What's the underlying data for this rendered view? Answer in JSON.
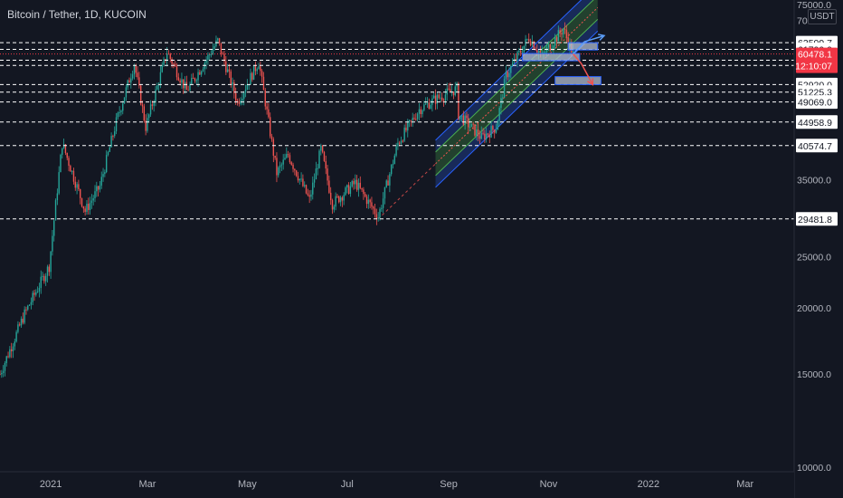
{
  "header": {
    "title": "Bitcoin / Tether, 1D, KUCOIN",
    "unit": "USDT"
  },
  "colors": {
    "background": "#131722",
    "up": "#26a69a",
    "down": "#ef5350",
    "grid_text": "#b2b5be",
    "price_badge": "#f23645"
  },
  "current_price": {
    "value": "60478.1",
    "countdown": "12:10:07"
  },
  "chart_data": {
    "type": "candlestick",
    "symbol": "Bitcoin / Tether",
    "interval": "1D",
    "exchange": "KUCOIN",
    "ylim": [
      10000,
      75000
    ],
    "xlim": [
      "2020-12-01",
      "2022-03-31"
    ],
    "y_ticks": [
      "75000.0",
      "70000.0",
      "35000.0",
      "25000.0",
      "20000.0",
      "15000.0",
      "10000.0"
    ],
    "x_ticks": [
      {
        "label": "2021",
        "date": "2021-01-01"
      },
      {
        "label": "Mar",
        "date": "2021-03-01"
      },
      {
        "label": "May",
        "date": "2021-05-01"
      },
      {
        "label": "Jul",
        "date": "2021-07-01"
      },
      {
        "label": "Sep",
        "date": "2021-09-01"
      },
      {
        "label": "Nov",
        "date": "2021-11-01"
      },
      {
        "label": "2022",
        "date": "2022-01-01"
      },
      {
        "label": "Mar",
        "date": "2022-03-01"
      }
    ],
    "horizontal_levels": [
      "63509.7",
      "61700.0",
      "58863.1",
      "57517.8",
      "52920.0",
      "51225.3",
      "49069.0",
      "44958.9",
      "40574.7",
      "29481.8"
    ],
    "price_path": [
      {
        "date": "2020-12-01",
        "close": 15000
      },
      {
        "date": "2020-12-16",
        "close": 19500
      },
      {
        "date": "2020-12-31",
        "close": 24000
      },
      {
        "date": "2021-01-08",
        "close": 41000
      },
      {
        "date": "2021-01-22",
        "close": 30500
      },
      {
        "date": "2021-01-31",
        "close": 34000
      },
      {
        "date": "2021-02-10",
        "close": 45000
      },
      {
        "date": "2021-02-21",
        "close": 58000
      },
      {
        "date": "2021-02-28",
        "close": 44000
      },
      {
        "date": "2021-03-13",
        "close": 61000
      },
      {
        "date": "2021-03-25",
        "close": 51500
      },
      {
        "date": "2021-04-13",
        "close": 64000
      },
      {
        "date": "2021-04-25",
        "close": 49000
      },
      {
        "date": "2021-05-08",
        "close": 58500
      },
      {
        "date": "2021-05-19",
        "close": 36000
      },
      {
        "date": "2021-05-26",
        "close": 39000
      },
      {
        "date": "2021-06-08",
        "close": 32000
      },
      {
        "date": "2021-06-15",
        "close": 40000
      },
      {
        "date": "2021-06-22",
        "close": 31500
      },
      {
        "date": "2021-07-06",
        "close": 34500
      },
      {
        "date": "2021-07-20",
        "close": 29800
      },
      {
        "date": "2021-08-01",
        "close": 41000
      },
      {
        "date": "2021-08-14",
        "close": 47500
      },
      {
        "date": "2021-08-23",
        "close": 49500
      },
      {
        "date": "2021-09-06",
        "close": 52000
      },
      {
        "date": "2021-09-07",
        "close": 46500
      },
      {
        "date": "2021-09-21",
        "close": 42000
      },
      {
        "date": "2021-09-30",
        "close": 44000
      },
      {
        "date": "2021-10-06",
        "close": 55000
      },
      {
        "date": "2021-10-20",
        "close": 65000
      },
      {
        "date": "2021-10-28",
        "close": 60000
      },
      {
        "date": "2021-11-10",
        "close": 67500
      },
      {
        "date": "2021-11-16",
        "close": 60478.1
      }
    ],
    "regression_channel": {
      "start": {
        "date": "2021-07-20",
        "price": 29481.8
      },
      "mid_end": {
        "date": "2021-12-01",
        "price": 74000
      }
    },
    "projections": [
      {
        "from": {
          "date": "2021-11-16",
          "price": 60478
        },
        "via": {
          "date": "2021-11-23",
          "price": 63800
        },
        "to": {
          "date": "2021-12-05",
          "price": 65500
        }
      },
      {
        "from": {
          "date": "2021-11-16",
          "price": 60478
        },
        "via": {
          "date": "2021-11-21",
          "price": 58000
        },
        "to": {
          "date": "2021-11-28",
          "price": 52900
        }
      }
    ],
    "zones": [
      {
        "from": "2021-11-13",
        "to": "2021-12-01",
        "low": 61700,
        "high": 63509.7
      },
      {
        "from": "2021-10-16",
        "to": "2021-11-20",
        "low": 58863.1,
        "high": 60600
      },
      {
        "from": "2021-11-05",
        "to": "2021-12-03",
        "low": 52920,
        "high": 54800
      }
    ]
  }
}
